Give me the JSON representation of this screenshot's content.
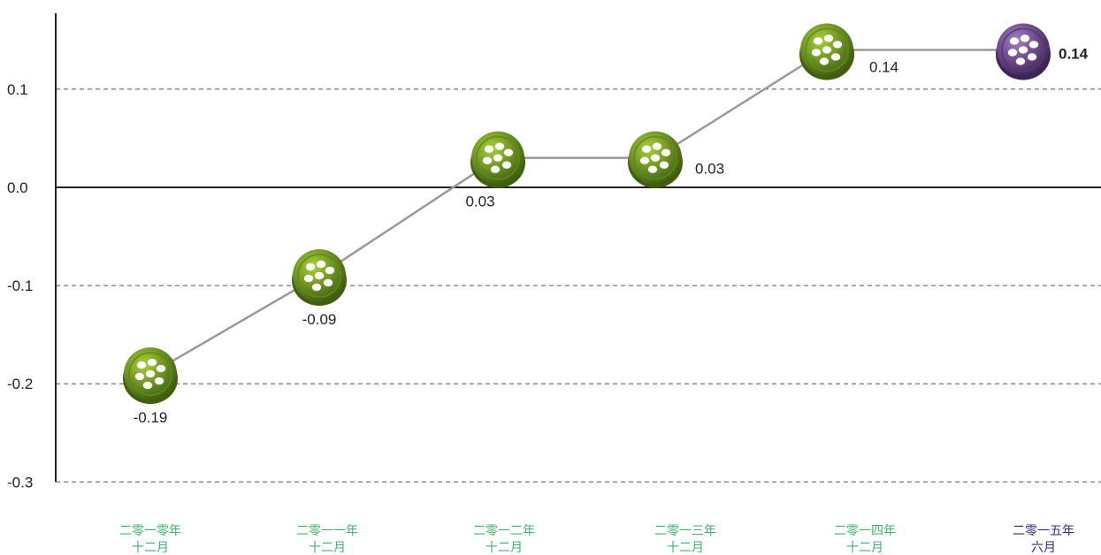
{
  "chart_data": {
    "type": "line",
    "title": "",
    "xlabel": "",
    "ylabel": "",
    "ylim": [
      -0.3,
      0.1
    ],
    "y_ticks": [
      "0.1",
      "0.0",
      "-0.1",
      "-0.2",
      "-0.3"
    ],
    "y_tick_values": [
      0.1,
      0.0,
      -0.1,
      -0.2,
      -0.3
    ],
    "grid": true,
    "categories": [
      [
        "二零一零年",
        "十二月"
      ],
      [
        "二零一一年",
        "十二月"
      ],
      [
        "二零一二年",
        "十二月"
      ],
      [
        "二零一三年",
        "十二月"
      ],
      [
        "二零一四年",
        "十二月"
      ],
      [
        "二零一五年",
        "六月"
      ]
    ],
    "values": [
      -0.19,
      -0.09,
      0.03,
      0.03,
      0.14,
      0.14
    ],
    "value_labels": [
      "-0.19",
      "-0.09",
      "0.03",
      "0.03",
      "0.14",
      "0.14"
    ],
    "highlight_index": 5,
    "colors": {
      "marker": "#7aa626",
      "marker_dark": "#3f5e10",
      "highlight_marker": "#7b4f9e",
      "highlight_marker_dark": "#3e2456",
      "category_text": "#3fb36b",
      "highlight_category_text": "#2b2f7a",
      "line": "#999999",
      "axis": "#222222",
      "grid": "#555555"
    }
  }
}
